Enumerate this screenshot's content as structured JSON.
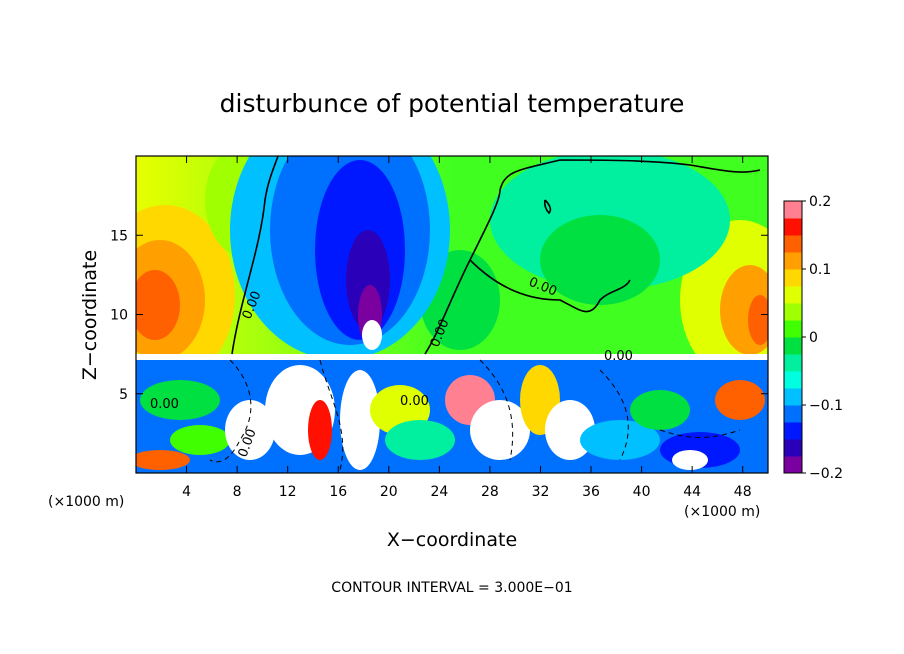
{
  "chart_data": {
    "type": "heatmap",
    "title": "disturbunce of potential temperature",
    "xlabel": "X−coordinate",
    "ylabel": "Z−coordinate",
    "x_unit_left": "(×1000 m)",
    "x_unit_right": "(×1000 m)",
    "footer": "CONTOUR INTERVAL = 3.000E−01",
    "xlim": [
      0,
      50
    ],
    "ylim": [
      0,
      20
    ],
    "x_ticks": [
      4,
      8,
      12,
      16,
      20,
      24,
      28,
      32,
      36,
      40,
      44,
      48
    ],
    "y_ticks": [
      5,
      10,
      15
    ],
    "colorbar": {
      "range": [
        -0.2,
        0.2
      ],
      "tick_values": [
        0.2,
        0.1,
        0,
        -0.1,
        -0.2
      ],
      "tick_labels": [
        "0.2",
        "0.1",
        "0",
        "−0.1",
        "−0.2"
      ],
      "colors": [
        "#7b00a0",
        "#2a00b8",
        "#0018ff",
        "#0070ff",
        "#00c0ff",
        "#00ffe0",
        "#00f0a0",
        "#00e040",
        "#40ff00",
        "#a0ff00",
        "#e0ff00",
        "#ffd800",
        "#ffa000",
        "#ff6000",
        "#ff1000",
        "#ff8090"
      ]
    },
    "contour_labels": [
      "0.00",
      "0.00",
      "0.00",
      "0.00",
      "0.00",
      "0.00",
      "0.00"
    ],
    "contour_interval": 0.3
  }
}
